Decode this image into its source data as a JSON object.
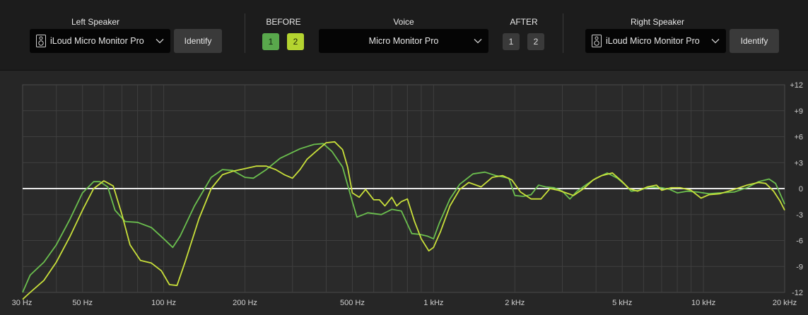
{
  "header": {
    "left": {
      "title": "Left Speaker",
      "speaker": "iLoud Micro Monitor Pro",
      "identify": "Identify"
    },
    "before": {
      "title": "BEFORE",
      "b1": "1",
      "b2": "2"
    },
    "voice": {
      "title": "Voice",
      "value": "Micro Monitor Pro"
    },
    "after": {
      "title": "AFTER",
      "b1": "1",
      "b2": "2"
    },
    "right": {
      "title": "Right Speaker",
      "speaker": "iLoud Micro Monitor Pro",
      "identify": "Identify"
    }
  },
  "chart_data": {
    "type": "line",
    "x_scale": "log",
    "xlim": [
      30,
      20000
    ],
    "ylim": [
      -12,
      12
    ],
    "grid": true,
    "x_ticks": [
      {
        "v": 30,
        "label": "30 Hz"
      },
      {
        "v": 50,
        "label": "50 Hz"
      },
      {
        "v": 100,
        "label": "100 Hz"
      },
      {
        "v": 200,
        "label": "200 Hz"
      },
      {
        "v": 500,
        "label": "500 Hz"
      },
      {
        "v": 1000,
        "label": "1 kHz"
      },
      {
        "v": 2000,
        "label": "2 kHz"
      },
      {
        "v": 5000,
        "label": "5 kHz"
      },
      {
        "v": 10000,
        "label": "10 kHz"
      },
      {
        "v": 20000,
        "label": "20 kHz"
      }
    ],
    "y_ticks": [
      {
        "v": 12,
        "label": "+12"
      },
      {
        "v": 9,
        "label": "+9"
      },
      {
        "v": 6,
        "label": "+6"
      },
      {
        "v": 3,
        "label": "+3"
      },
      {
        "v": 0,
        "label": "0"
      },
      {
        "v": -3,
        "label": "-3"
      },
      {
        "v": -6,
        "label": "-6"
      },
      {
        "v": -9,
        "label": "-9"
      },
      {
        "v": -12,
        "label": "-12"
      }
    ],
    "reference_line": 0,
    "series": [
      {
        "color": "#6bbf4e",
        "points": [
          [
            30,
            -12
          ],
          [
            32,
            -10
          ],
          [
            36,
            -8.5
          ],
          [
            40,
            -6.5
          ],
          [
            45,
            -3.5
          ],
          [
            50,
            -0.5
          ],
          [
            55,
            0.8
          ],
          [
            58,
            0.8
          ],
          [
            62,
            0.2
          ],
          [
            66,
            -2.5
          ],
          [
            72,
            -3.8
          ],
          [
            80,
            -3.9
          ],
          [
            90,
            -4.5
          ],
          [
            100,
            -5.8
          ],
          [
            108,
            -6.8
          ],
          [
            115,
            -5.5
          ],
          [
            130,
            -2
          ],
          [
            150,
            1.3
          ],
          [
            165,
            2.2
          ],
          [
            180,
            2.1
          ],
          [
            200,
            1.3
          ],
          [
            215,
            1.2
          ],
          [
            240,
            2.2
          ],
          [
            270,
            3.5
          ],
          [
            320,
            4.6
          ],
          [
            360,
            5.1
          ],
          [
            390,
            5.2
          ],
          [
            420,
            4.3
          ],
          [
            460,
            2.5
          ],
          [
            500,
            -1.5
          ],
          [
            520,
            -3.3
          ],
          [
            570,
            -2.8
          ],
          [
            640,
            -3
          ],
          [
            700,
            -2.4
          ],
          [
            760,
            -2.6
          ],
          [
            830,
            -5.2
          ],
          [
            890,
            -5.3
          ],
          [
            950,
            -5.5
          ],
          [
            1000,
            -5.8
          ],
          [
            1050,
            -4
          ],
          [
            1150,
            -1.2
          ],
          [
            1250,
            0.5
          ],
          [
            1400,
            1.7
          ],
          [
            1550,
            1.9
          ],
          [
            1700,
            1.5
          ],
          [
            1900,
            1.2
          ],
          [
            2000,
            -0.8
          ],
          [
            2150,
            -0.9
          ],
          [
            2300,
            -0.7
          ],
          [
            2450,
            0.4
          ],
          [
            2600,
            0.2
          ],
          [
            2800,
            0.1
          ],
          [
            3000,
            -0.3
          ],
          [
            3200,
            -1.2
          ],
          [
            3400,
            -0.3
          ],
          [
            3700,
            0.5
          ],
          [
            4000,
            1.2
          ],
          [
            4400,
            1.8
          ],
          [
            4800,
            1.2
          ],
          [
            5100,
            0.5
          ],
          [
            5400,
            -0.3
          ],
          [
            5800,
            -0.2
          ],
          [
            6300,
            0.2
          ],
          [
            7000,
            0.1
          ],
          [
            7500,
            -0.1
          ],
          [
            8000,
            -0.5
          ],
          [
            8700,
            -0.3
          ],
          [
            9500,
            -0.4
          ],
          [
            10500,
            -0.6
          ],
          [
            11500,
            -0.5
          ],
          [
            13000,
            -0.4
          ],
          [
            14500,
            0.1
          ],
          [
            16000,
            0.8
          ],
          [
            17500,
            1.1
          ],
          [
            18500,
            0.6
          ],
          [
            20000,
            -1.8
          ]
        ]
      },
      {
        "color": "#c9e03a",
        "points": [
          [
            30,
            -12.8
          ],
          [
            32,
            -12
          ],
          [
            36,
            -10.6
          ],
          [
            40,
            -8.5
          ],
          [
            45,
            -5.5
          ],
          [
            50,
            -2.5
          ],
          [
            55,
            0
          ],
          [
            60,
            0.9
          ],
          [
            65,
            0.3
          ],
          [
            70,
            -3
          ],
          [
            75,
            -6.5
          ],
          [
            82,
            -8.3
          ],
          [
            90,
            -8.6
          ],
          [
            98,
            -9.5
          ],
          [
            105,
            -11.1
          ],
          [
            112,
            -11.2
          ],
          [
            120,
            -8.5
          ],
          [
            135,
            -3.5
          ],
          [
            150,
            0
          ],
          [
            165,
            1.6
          ],
          [
            180,
            2
          ],
          [
            200,
            2.3
          ],
          [
            220,
            2.6
          ],
          [
            240,
            2.6
          ],
          [
            260,
            2.2
          ],
          [
            280,
            1.6
          ],
          [
            300,
            1.2
          ],
          [
            320,
            2.2
          ],
          [
            340,
            3.4
          ],
          [
            370,
            4.4
          ],
          [
            400,
            5.3
          ],
          [
            430,
            5.4
          ],
          [
            460,
            4.5
          ],
          [
            480,
            2.5
          ],
          [
            500,
            -0.5
          ],
          [
            530,
            -1
          ],
          [
            560,
            -0.1
          ],
          [
            600,
            -1.3
          ],
          [
            630,
            -1.3
          ],
          [
            660,
            -2
          ],
          [
            700,
            -1
          ],
          [
            730,
            -2
          ],
          [
            760,
            -1.5
          ],
          [
            800,
            -1.2
          ],
          [
            850,
            -3.8
          ],
          [
            900,
            -5.8
          ],
          [
            960,
            -7.2
          ],
          [
            1000,
            -6.8
          ],
          [
            1060,
            -5
          ],
          [
            1150,
            -2
          ],
          [
            1250,
            -0.1
          ],
          [
            1350,
            0.7
          ],
          [
            1500,
            0.2
          ],
          [
            1650,
            1.3
          ],
          [
            1800,
            1.5
          ],
          [
            1950,
            1
          ],
          [
            2100,
            -0.4
          ],
          [
            2300,
            -1.2
          ],
          [
            2500,
            -1.2
          ],
          [
            2700,
            0
          ],
          [
            2900,
            -0.2
          ],
          [
            3100,
            -0.5
          ],
          [
            3300,
            -0.8
          ],
          [
            3600,
            0
          ],
          [
            3900,
            1
          ],
          [
            4200,
            1.5
          ],
          [
            4600,
            1.8
          ],
          [
            5000,
            0.8
          ],
          [
            5300,
            0
          ],
          [
            5700,
            -0.3
          ],
          [
            6200,
            0.2
          ],
          [
            6700,
            0.4
          ],
          [
            7000,
            -0.2
          ],
          [
            7600,
            0.1
          ],
          [
            8200,
            0.1
          ],
          [
            9000,
            -0.2
          ],
          [
            9800,
            -1.1
          ],
          [
            10500,
            -0.7
          ],
          [
            11500,
            -0.6
          ],
          [
            13000,
            -0.1
          ],
          [
            14500,
            0.4
          ],
          [
            16000,
            0.7
          ],
          [
            17000,
            0.6
          ],
          [
            18200,
            -0.3
          ],
          [
            19200,
            -1.4
          ],
          [
            20000,
            -2.5
          ]
        ]
      }
    ]
  }
}
